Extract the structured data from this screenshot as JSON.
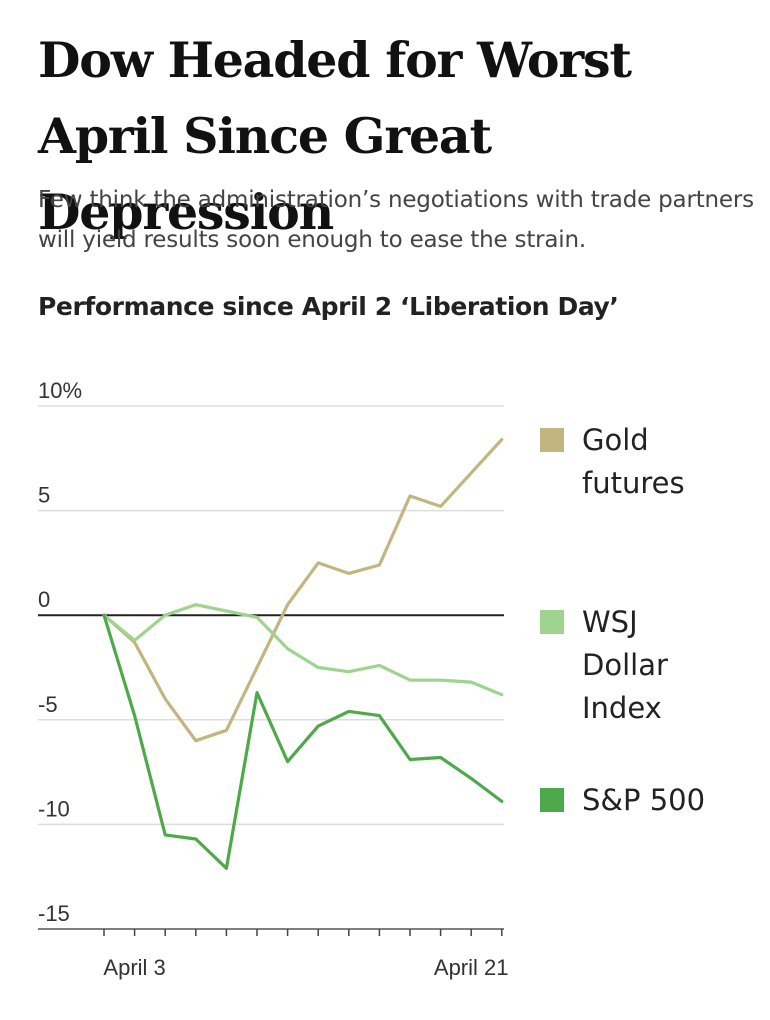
{
  "headline": "Dow Headed for Worst April Since Great Depression",
  "subtitle": "Few think the administration’s negotiations with trade partners will yield results soon enough to ease the strain.",
  "chart_title": "Performance since April 2 ‘Liberation Day’",
  "chart_data": {
    "type": "line",
    "title": "Performance since April 2 ‘Liberation Day’",
    "xlabel": "",
    "ylabel": "",
    "x": [
      0,
      1,
      2,
      3,
      4,
      5,
      6,
      7,
      8,
      9,
      10,
      11,
      12,
      13
    ],
    "x_tick_labels": [
      {
        "x": 1,
        "label": "April 3"
      },
      {
        "x": 12,
        "label": "April 21"
      }
    ],
    "y_ticks": [
      {
        "value": 10,
        "label": "10%"
      },
      {
        "value": 5,
        "label": "5"
      },
      {
        "value": 0,
        "label": "0"
      },
      {
        "value": -5,
        "label": "-5"
      },
      {
        "value": -10,
        "label": "-10"
      },
      {
        "value": -15,
        "label": "-15"
      }
    ],
    "ylim": [
      -15,
      10
    ],
    "series": [
      {
        "name": "Gold futures",
        "color": "#c2b57d",
        "label_lines": [
          "Gold",
          "futures"
        ],
        "values": [
          0,
          -1.3,
          -4.0,
          -6.0,
          -5.5,
          -2.5,
          0.5,
          2.5,
          2.0,
          2.4,
          5.7,
          5.2,
          6.8,
          8.4
        ]
      },
      {
        "name": "WSJ Dollar Index",
        "color": "#9fd48f",
        "label_lines": [
          "WSJ",
          "Dollar",
          "Index"
        ],
        "values": [
          0,
          -1.2,
          0.0,
          0.5,
          0.2,
          -0.1,
          -1.6,
          -2.5,
          -2.7,
          -2.4,
          -3.1,
          -3.1,
          -3.2,
          -3.8
        ]
      },
      {
        "name": "S&P 500",
        "color": "#4ea94a",
        "label_lines": [
          "S&P 500"
        ],
        "values": [
          0,
          -4.8,
          -10.5,
          -10.7,
          -12.1,
          -3.7,
          -7.0,
          -5.3,
          -4.6,
          -4.8,
          -6.9,
          -6.8,
          -7.8,
          -8.9
        ]
      }
    ]
  }
}
